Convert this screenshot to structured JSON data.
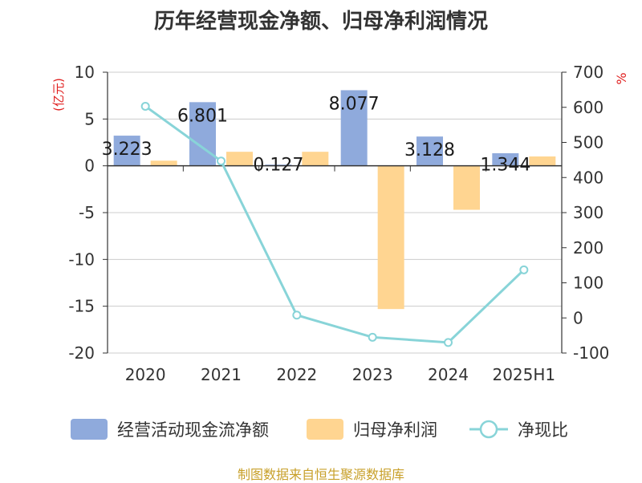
{
  "chart_data": {
    "type": "bar",
    "title": "历年经营现金净额、归母净利润情况",
    "categories": [
      "2020",
      "2021",
      "2022",
      "2023",
      "2024",
      "2025H1"
    ],
    "left_axis": {
      "label": "(亿元)",
      "ylim": [
        -20,
        10
      ],
      "ticks": [
        10,
        5,
        0,
        -5,
        -10,
        -15,
        -20
      ]
    },
    "right_axis": {
      "label": "%",
      "ylim": [
        -100,
        700
      ],
      "ticks": [
        700,
        600,
        500,
        400,
        300,
        200,
        100,
        0,
        -100
      ]
    },
    "series": [
      {
        "name": "经营活动现金流净额",
        "type": "bar",
        "axis": "left",
        "color": "#8faadc",
        "values": [
          3.223,
          6.801,
          0.127,
          8.077,
          3.128,
          1.344
        ],
        "labels": [
          "3.223",
          "6.801",
          "0.127",
          "8.077",
          "3.128",
          "1.344"
        ]
      },
      {
        "name": "归母净利润",
        "type": "bar",
        "axis": "left",
        "color": "#ffd591",
        "values": [
          0.55,
          1.5,
          1.5,
          -15.3,
          -4.7,
          1.0
        ]
      },
      {
        "name": "净现比",
        "type": "line",
        "axis": "right",
        "color": "#88d4d8",
        "values": [
          603,
          447,
          8,
          -55,
          -70,
          137
        ]
      }
    ],
    "grid": true,
    "legend_position": "bottom"
  },
  "source": "制图数据来自恒生聚源数据库"
}
